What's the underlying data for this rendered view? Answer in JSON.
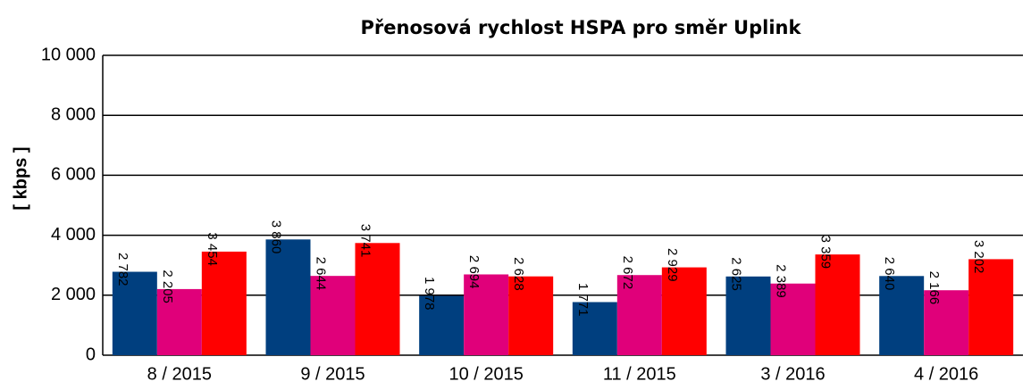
{
  "chart_data": {
    "type": "bar",
    "title": "Přenosová rychlost HSPA pro směr Uplink",
    "y_label": "[ kbps ]",
    "categories": [
      "8 / 2015",
      "9 / 2015",
      "10 / 2015",
      "11 / 2015",
      "3 / 2016",
      "4 / 2016"
    ],
    "series": [
      {
        "color": "#003f7f",
        "values": [
          2782,
          3860,
          1978,
          1771,
          2625,
          2640
        ],
        "value_labels": [
          "2 782",
          "3 860",
          "1 978",
          "1 771",
          "2 625",
          "2 640"
        ]
      },
      {
        "color": "#e0007a",
        "values": [
          2205,
          2644,
          2694,
          2672,
          2389,
          2166
        ],
        "value_labels": [
          "2 205",
          "2 644",
          "2 694",
          "2 672",
          "2 389",
          "2 166"
        ]
      },
      {
        "color": "#ff0000",
        "values": [
          3454,
          3741,
          2628,
          2929,
          3359,
          3202
        ],
        "value_labels": [
          "3 454",
          "3 741",
          "2 628",
          "2 929",
          "3 359",
          "3 202"
        ]
      }
    ],
    "ylim": [
      0,
      10000
    ],
    "yticks": [
      0,
      {
        "value": 2000,
        "label": "2 000"
      },
      {
        "value": 4000,
        "label": "4 000"
      },
      {
        "value": 6000,
        "label": "6 000"
      },
      {
        "value": 8000,
        "label": "8 000"
      },
      {
        "value": 10000,
        "label": "10 000"
      }
    ],
    "grid": true
  }
}
